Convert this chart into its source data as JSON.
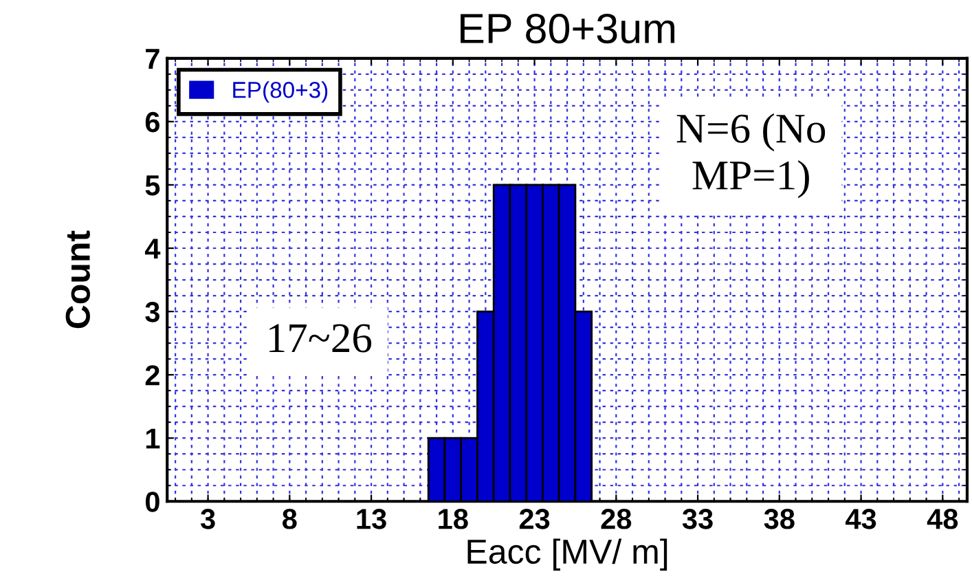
{
  "chart_data": {
    "type": "histogram",
    "title": "EP 80+3um",
    "xlabel": "Eacc [MV/ m]",
    "ylabel": "Count",
    "bins": [
      16.5,
      17.5,
      18.5,
      19.5,
      20.5,
      21.5,
      22.5,
      23.5,
      24.5,
      25.5,
      26.5
    ],
    "series": [
      {
        "name": "EP(80+3)",
        "color": "#0000cc",
        "values": [
          1,
          1,
          1,
          3,
          5,
          5,
          5,
          5,
          5,
          3
        ]
      }
    ],
    "xlim": [
      0.5,
      49.5
    ],
    "xticks": [
      3,
      8,
      13,
      18,
      23,
      28,
      33,
      38,
      43,
      48
    ],
    "ylim": [
      0,
      7
    ],
    "yticks": [
      0,
      1,
      2,
      3,
      4,
      5,
      6,
      7
    ],
    "annotations": [
      "N=6 (No MP=1)",
      "17~26"
    ],
    "grid": true,
    "legend": "top left"
  }
}
